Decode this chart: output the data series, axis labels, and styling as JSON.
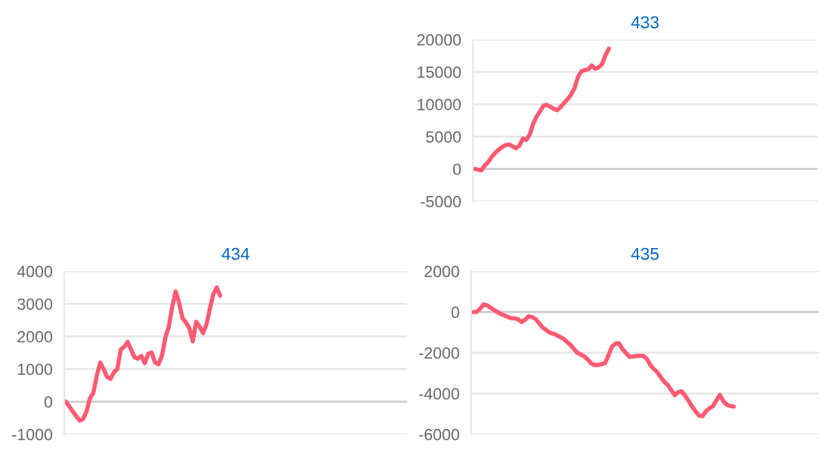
{
  "chart_data": [
    {
      "type": "line",
      "title": "433",
      "categories": [
        null,
        null,
        null,
        null,
        null,
        null,
        null,
        null,
        null,
        null,
        null,
        null,
        null,
        null,
        null,
        null,
        null,
        null,
        null,
        null,
        null,
        null,
        null,
        null,
        null,
        null,
        null,
        null,
        null,
        null,
        null,
        null,
        null,
        null,
        null,
        null,
        null,
        null,
        null,
        null,
        null,
        null,
        null,
        null,
        null,
        null,
        null,
        null,
        null,
        null,
        null,
        null,
        null,
        null,
        null,
        null,
        null,
        null,
        null,
        null,
        null,
        null,
        null,
        null,
        null,
        null,
        null,
        null,
        null,
        null,
        null,
        null,
        null,
        null,
        null,
        null,
        null,
        null,
        null,
        null,
        null,
        null,
        null,
        null,
        null,
        null,
        null,
        null,
        null,
        null,
        null,
        null,
        null,
        null,
        null,
        null,
        null,
        null,
        null,
        null
      ],
      "series": [
        {
          "color": "#ff5a72",
          "values": [
            0,
            -100,
            -200,
            600,
            1100,
            1900,
            2500,
            3000,
            3400,
            3700,
            3800,
            3500,
            3200,
            3600,
            4700,
            4500,
            5300,
            7000,
            8100,
            8900,
            9800,
            9900,
            9600,
            9300,
            9100,
            9600,
            10200,
            10800,
            11500,
            12500,
            14200,
            15100,
            15300,
            15400,
            16000,
            15500,
            15700,
            16200,
            17600,
            18600,
            null,
            null,
            null,
            null,
            null,
            null,
            null,
            null,
            null,
            null,
            null,
            null,
            null,
            null,
            null,
            null,
            null,
            null,
            null,
            null,
            null,
            null,
            null,
            null,
            null,
            null,
            null,
            null,
            null,
            null,
            null,
            null,
            null,
            null,
            null,
            null,
            null,
            null,
            null,
            null,
            null,
            null,
            null,
            null,
            null,
            null,
            null,
            null,
            null,
            null,
            null,
            null,
            null,
            null,
            null,
            null,
            null,
            null,
            null,
            null
          ]
        }
      ],
      "ylim": [
        -5000,
        20000
      ],
      "yticks": [
        -5000,
        0,
        5000,
        10000,
        15000,
        20000
      ],
      "grid": "y",
      "tick_labels": "y",
      "marker": "none",
      "line_style": "solid"
    },
    {
      "type": "line",
      "title": "434",
      "categories": [
        null,
        null,
        null,
        null,
        null,
        null,
        null,
        null,
        null,
        null,
        null,
        null,
        null,
        null,
        null,
        null,
        null,
        null,
        null,
        null,
        null,
        null,
        null,
        null,
        null,
        null,
        null,
        null,
        null,
        null,
        null,
        null,
        null,
        null,
        null,
        null,
        null,
        null,
        null,
        null,
        null,
        null,
        null,
        null,
        null,
        null,
        null,
        null,
        null,
        null,
        null,
        null,
        null,
        null,
        null,
        null,
        null,
        null,
        null,
        null,
        null,
        null,
        null,
        null,
        null,
        null,
        null,
        null,
        null,
        null,
        null,
        null,
        null,
        null,
        null,
        null,
        null,
        null,
        null,
        null,
        null,
        null,
        null,
        null,
        null,
        null,
        null,
        null,
        null,
        null,
        null,
        null,
        null,
        null,
        null,
        null,
        null,
        null,
        null,
        null
      ],
      "series": [
        {
          "color": "#ff5a72",
          "values": [
            0,
            -150,
            -300,
            -440,
            -580,
            -530,
            -300,
            100,
            270,
            800,
            1200,
            1000,
            760,
            700,
            900,
            1000,
            1600,
            1680,
            1830,
            1600,
            1360,
            1320,
            1400,
            1180,
            1470,
            1510,
            1200,
            1150,
            1400,
            1960,
            2300,
            2900,
            3380,
            3040,
            2560,
            2430,
            2260,
            1850,
            2450,
            2300,
            2100,
            2370,
            2850,
            3300,
            3500,
            3250,
            null,
            null,
            null,
            null,
            null,
            null,
            null,
            null,
            null,
            null,
            null,
            null,
            null,
            null,
            null,
            null,
            null,
            null,
            null,
            null,
            null,
            null,
            null,
            null,
            null,
            null,
            null,
            null,
            null,
            null,
            null,
            null,
            null,
            null,
            null,
            null,
            null,
            null,
            null,
            null,
            null,
            null,
            null,
            null,
            null,
            null,
            null,
            null,
            null,
            null,
            null,
            null,
            null,
            null
          ]
        }
      ],
      "ylim": [
        -1000,
        4000
      ],
      "yticks": [
        -1000,
        0,
        1000,
        2000,
        3000,
        4000
      ],
      "grid": "y",
      "tick_labels": "y",
      "marker": "none",
      "line_style": "solid"
    },
    {
      "type": "line",
      "title": "435",
      "categories": [
        null,
        null,
        null,
        null,
        null,
        null,
        null,
        null,
        null,
        null,
        null,
        null,
        null,
        null,
        null,
        null,
        null,
        null,
        null,
        null,
        null,
        null,
        null,
        null,
        null,
        null,
        null,
        null,
        null,
        null,
        null,
        null,
        null,
        null,
        null,
        null,
        null,
        null,
        null,
        null,
        null,
        null,
        null,
        null,
        null,
        null,
        null,
        null,
        null,
        null,
        null,
        null,
        null,
        null,
        null,
        null,
        null,
        null,
        null,
        null,
        null,
        null,
        null,
        null,
        null,
        null,
        null,
        null,
        null,
        null,
        null,
        null,
        null,
        null,
        null,
        null,
        null,
        null,
        null,
        null,
        null,
        null,
        null,
        null,
        null,
        null,
        null,
        null,
        null,
        null,
        null,
        null,
        null,
        null,
        null,
        null,
        null,
        null,
        null,
        null
      ],
      "series": [
        {
          "color": "#ff5a72",
          "values": [
            0,
            0,
            150,
            370,
            330,
            220,
            100,
            0,
            -90,
            -170,
            -240,
            -310,
            -310,
            -360,
            -490,
            -380,
            -210,
            -250,
            -340,
            -550,
            -750,
            -880,
            -1000,
            -1060,
            -1130,
            -1220,
            -1310,
            -1460,
            -1610,
            -1810,
            -2000,
            -2080,
            -2180,
            -2330,
            -2520,
            -2600,
            -2600,
            -2560,
            -2510,
            -2110,
            -1690,
            -1550,
            -1530,
            -1820,
            -2010,
            -2200,
            -2180,
            -2160,
            -2150,
            -2150,
            -2300,
            -2600,
            -2800,
            -2950,
            -3200,
            -3420,
            -3580,
            -3820,
            -4080,
            -3930,
            -3890,
            -4100,
            -4360,
            -4630,
            -4870,
            -5080,
            -5110,
            -4870,
            -4730,
            -4620,
            -4330,
            -4070,
            -4380,
            -4550,
            -4610,
            -4640,
            null,
            null,
            null,
            null,
            null,
            null,
            null,
            null,
            null,
            null,
            null,
            null,
            null,
            null,
            null,
            null,
            null,
            null,
            null,
            null,
            null,
            null,
            null,
            null
          ]
        }
      ],
      "ylim": [
        -6000,
        2000
      ],
      "yticks": [
        -6000,
        -4000,
        -2000,
        0,
        2000
      ],
      "grid": "y",
      "tick_labels": "y",
      "marker": "none",
      "line_style": "solid"
    }
  ]
}
